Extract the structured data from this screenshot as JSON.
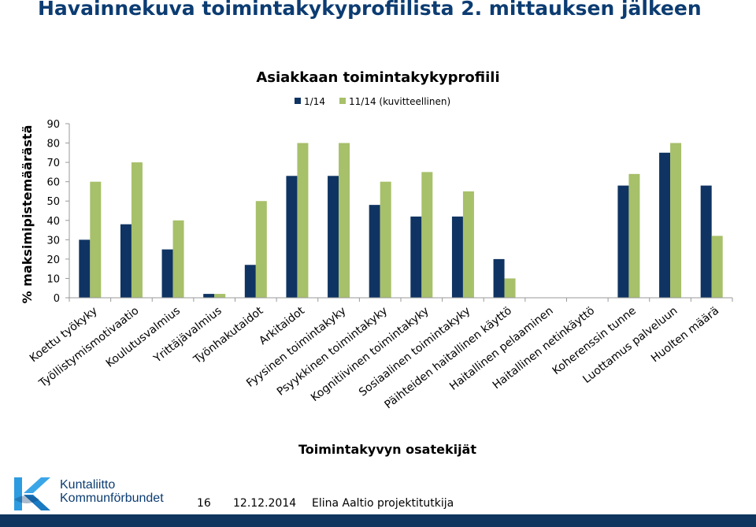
{
  "slide": {
    "title": "Havainnekuva toimintakykyprofiilista 2. mittauksen jälkeen"
  },
  "chart_data": {
    "type": "bar",
    "title": "Asiakkaan toimintakykyprofiili",
    "xlabel": "Toimintakyvyn osatekijät",
    "ylabel": "% maksimipistemäärästä",
    "ylim": [
      0,
      90
    ],
    "yticks": [
      0,
      10,
      20,
      30,
      40,
      50,
      60,
      70,
      80,
      90
    ],
    "grid": false,
    "legend_position": "top",
    "categories": [
      "Koettu työkyky",
      "Työllistymismotivaatio",
      "Koulutusvalmius",
      "Yrittäjävalmius",
      "Työnhakutaidot",
      "Arkitaidot",
      "Fyysinen toimintakyky",
      "Psyykkinen toimintakyky",
      "Kognitiivinen toimintakyky",
      "Sosiaalinen toimintakyky",
      "Päihteiden haitallinen käyttö",
      "Haitallinen pelaaminen",
      "Haitallinen netinkäyttö",
      "Koherenssin tunne",
      "Luottamus palveluun",
      "Huolten määrä"
    ],
    "series": [
      {
        "name": "1/14",
        "color": "#0f3463",
        "values": [
          30,
          38,
          25,
          2,
          17,
          63,
          63,
          48,
          42,
          42,
          20,
          0,
          0,
          58,
          75,
          58
        ]
      },
      {
        "name": "11/14 (kuvitteellinen)",
        "color": "#a7c06a",
        "values": [
          60,
          70,
          40,
          2,
          50,
          80,
          80,
          60,
          65,
          55,
          10,
          0,
          0,
          64,
          80,
          32
        ]
      }
    ]
  },
  "footer": {
    "logo_line1": "Kuntaliitto",
    "logo_line2": "Kommunförbundet",
    "page_number": "16",
    "date": "12.12.2014",
    "author": "Elina Aaltio projektitutkija"
  },
  "colors": {
    "title": "#0c3c72",
    "bottom_bar": "#10355e",
    "axis": "#9a9a9a"
  }
}
